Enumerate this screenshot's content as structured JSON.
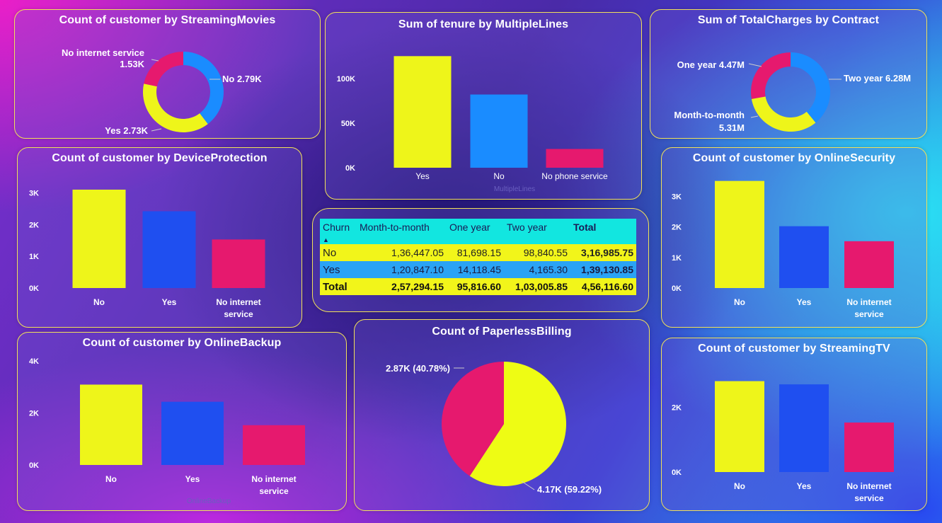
{
  "colors": {
    "yellow": "#eef51a",
    "blue": "#1f4ff0",
    "pink": "#e6196e",
    "skyblue": "#1a8cff",
    "pie_yellow": "#eefc14"
  },
  "charts": [
    {
      "id": "streaming_movies",
      "type": "donut",
      "title": "Count of customer by StreamingMovies",
      "slices": [
        {
          "name": "No",
          "value": 2790,
          "label": "No 2.79K",
          "color": "#1a8cff"
        },
        {
          "name": "Yes",
          "value": 2730,
          "label": "Yes 2.73K",
          "color": "#eef51a"
        },
        {
          "name": "No internet service",
          "value": 1530,
          "label_line1": "No internet service",
          "label_line2": "1.53K",
          "color": "#e6196e"
        }
      ]
    },
    {
      "id": "tenure_multiplelines",
      "type": "bar",
      "title": "Sum of tenure by MultipleLines",
      "xlabel": "MultipleLines",
      "categories": [
        "Yes",
        "No",
        "No phone service"
      ],
      "values": [
        125000,
        82000,
        21000
      ],
      "colors": [
        "#eef51a",
        "#1a8cff",
        "#e6196e"
      ],
      "yticks": [
        {
          "v": 0,
          "t": "0K"
        },
        {
          "v": 50000,
          "t": "50K"
        },
        {
          "v": 100000,
          "t": "100K"
        }
      ],
      "ylim": [
        0,
        130000
      ]
    },
    {
      "id": "totalcharges_contract",
      "type": "donut",
      "title": "Sum of TotalCharges by Contract",
      "slices": [
        {
          "name": "Two year",
          "value": 6.28,
          "label": "Two year 6.28M",
          "color": "#1a8cff"
        },
        {
          "name": "Month-to-month",
          "value": 5.31,
          "label_line1": "Month-to-month",
          "label_line2": "5.31M",
          "color": "#eef51a"
        },
        {
          "name": "One year",
          "value": 4.47,
          "label": "One year 4.47M",
          "color": "#e6196e"
        }
      ]
    },
    {
      "id": "device_protection",
      "type": "bar",
      "title": "Count of customer by DeviceProtection",
      "categories": [
        "No",
        "Yes",
        "No internet service"
      ],
      "category_lines": [
        [
          "No"
        ],
        [
          "Yes"
        ],
        [
          "No internet",
          "service"
        ]
      ],
      "values": [
        3100,
        2420,
        1530
      ],
      "colors": [
        "#eef51a",
        "#1f4ff0",
        "#e6196e"
      ],
      "yticks": [
        {
          "v": 0,
          "t": "0K"
        },
        {
          "v": 1000,
          "t": "1K"
        },
        {
          "v": 2000,
          "t": "2K"
        },
        {
          "v": 3000,
          "t": "3K"
        }
      ],
      "ylim": [
        0,
        3300
      ]
    },
    {
      "id": "online_security",
      "type": "bar",
      "title": "Count of customer by OnlineSecurity",
      "categories": [
        "No",
        "Yes",
        "No internet service"
      ],
      "category_lines": [
        [
          "No"
        ],
        [
          "Yes"
        ],
        [
          "No internet",
          "service"
        ]
      ],
      "values": [
        3500,
        2020,
        1530
      ],
      "colors": [
        "#eef51a",
        "#1f4ff0",
        "#e6196e"
      ],
      "yticks": [
        {
          "v": 0,
          "t": "0K"
        },
        {
          "v": 1000,
          "t": "1K"
        },
        {
          "v": 2000,
          "t": "2K"
        },
        {
          "v": 3000,
          "t": "3K"
        }
      ],
      "ylim": [
        0,
        3700
      ]
    },
    {
      "id": "online_backup",
      "type": "bar",
      "title": "Count of customer by OnlineBackup",
      "xlabel": "OnlineBackup",
      "categories": [
        "No",
        "Yes",
        "No internet service"
      ],
      "category_lines": [
        [
          "No"
        ],
        [
          "Yes"
        ],
        [
          "No internet",
          "service"
        ]
      ],
      "values": [
        3090,
        2430,
        1530
      ],
      "colors": [
        "#eef51a",
        "#1f4ff0",
        "#e6196e"
      ],
      "yticks": [
        {
          "v": 0,
          "t": "0K"
        },
        {
          "v": 2000,
          "t": "2K"
        },
        {
          "v": 4000,
          "t": "4K"
        }
      ],
      "ylim": [
        0,
        4000
      ]
    },
    {
      "id": "paperless_billing",
      "type": "pie",
      "title": "Count of PaperlessBilling",
      "slices": [
        {
          "name": "Yes",
          "value": 4170,
          "label": "4.17K (59.22%)",
          "color": "#eefc14"
        },
        {
          "name": "No",
          "value": 2870,
          "label": "2.87K (40.78%)",
          "color": "#e6196e"
        }
      ]
    },
    {
      "id": "streaming_tv",
      "type": "bar",
      "title": "Count of customer by StreamingTV",
      "categories": [
        "No",
        "Yes",
        "No internet service"
      ],
      "category_lines": [
        [
          "No"
        ],
        [
          "Yes"
        ],
        [
          "No internet",
          "service"
        ]
      ],
      "values": [
        2810,
        2710,
        1530
      ],
      "colors": [
        "#eef51a",
        "#1f4ff0",
        "#e6196e"
      ],
      "yticks": [
        {
          "v": 0,
          "t": "0K"
        },
        {
          "v": 2000,
          "t": "2K"
        }
      ],
      "ylim": [
        0,
        3150
      ]
    }
  ],
  "matrix": {
    "headers": [
      "Churn",
      "Month-to-month",
      "One year",
      "Two year",
      "Total"
    ],
    "rows": [
      {
        "label": "No",
        "values": [
          "1,36,447.05",
          "81,698.15",
          "98,840.55",
          "3,16,985.75"
        ]
      },
      {
        "label": "Yes",
        "values": [
          "1,20,847.10",
          "14,118.45",
          "4,165.30",
          "1,39,130.85"
        ]
      }
    ],
    "total": {
      "label": "Total",
      "values": [
        "2,57,294.15",
        "95,816.60",
        "1,03,005.85",
        "4,56,116.60"
      ]
    }
  },
  "chart_data": [
    {
      "type": "pie",
      "title": "Count of customer by StreamingMovies",
      "categories": [
        "No",
        "Yes",
        "No internet service"
      ],
      "values": [
        2790,
        2730,
        1530
      ]
    },
    {
      "type": "bar",
      "title": "Sum of tenure by MultipleLines",
      "xlabel": "MultipleLines",
      "categories": [
        "Yes",
        "No",
        "No phone service"
      ],
      "values": [
        125000,
        82000,
        21000
      ],
      "ylim": [
        0,
        130000
      ]
    },
    {
      "type": "pie",
      "title": "Sum of TotalCharges by Contract",
      "categories": [
        "Two year",
        "Month-to-month",
        "One year"
      ],
      "values": [
        6280000,
        5310000,
        4470000
      ]
    },
    {
      "type": "bar",
      "title": "Count of customer by DeviceProtection",
      "categories": [
        "No",
        "Yes",
        "No internet service"
      ],
      "values": [
        3100,
        2420,
        1530
      ],
      "ylim": [
        0,
        3300
      ]
    },
    {
      "type": "bar",
      "title": "Count of customer by OnlineSecurity",
      "categories": [
        "No",
        "Yes",
        "No internet service"
      ],
      "values": [
        3500,
        2020,
        1530
      ],
      "ylim": [
        0,
        3700
      ]
    },
    {
      "type": "bar",
      "title": "Count of customer by OnlineBackup",
      "xlabel": "OnlineBackup",
      "categories": [
        "No",
        "Yes",
        "No internet service"
      ],
      "values": [
        3090,
        2430,
        1530
      ],
      "ylim": [
        0,
        4000
      ]
    },
    {
      "type": "pie",
      "title": "Count of PaperlessBilling",
      "categories": [
        "Yes",
        "No"
      ],
      "values": [
        4170,
        2870
      ]
    },
    {
      "type": "bar",
      "title": "Count of customer by StreamingTV",
      "categories": [
        "No",
        "Yes",
        "No internet service"
      ],
      "values": [
        2810,
        2710,
        1530
      ],
      "ylim": [
        0,
        3150
      ]
    },
    {
      "type": "table",
      "title": "",
      "columns": [
        "Churn",
        "Month-to-month",
        "One year",
        "Two year",
        "Total"
      ],
      "rows": [
        [
          "No",
          "1,36,447.05",
          "81,698.15",
          "98,840.55",
          "3,16,985.75"
        ],
        [
          "Yes",
          "1,20,847.10",
          "14,118.45",
          "4,165.30",
          "1,39,130.85"
        ],
        [
          "Total",
          "2,57,294.15",
          "95,816.60",
          "1,03,005.85",
          "4,56,116.60"
        ]
      ]
    }
  ]
}
